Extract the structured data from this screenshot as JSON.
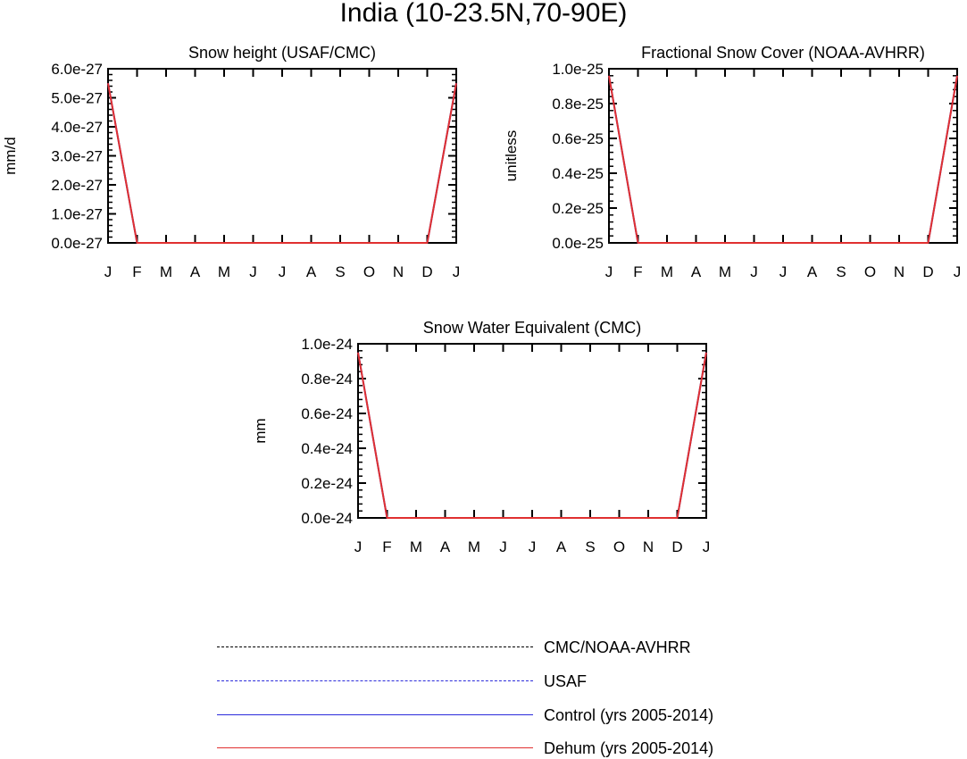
{
  "title": "India (10-23.5N,70-90E)",
  "chart_data": [
    {
      "type": "line",
      "title": "Snow height (USAF/CMC)",
      "ylabel": "mm/d",
      "x": [
        "J",
        "F",
        "M",
        "A",
        "M",
        "J",
        "J",
        "A",
        "S",
        "O",
        "N",
        "D",
        "J"
      ],
      "ylim": [
        0,
        6e-27
      ],
      "yticks": [
        "0.0e-27",
        "1.0e-27",
        "2.0e-27",
        "3.0e-27",
        "4.0e-27",
        "5.0e-27",
        "6.0e-27"
      ],
      "series": [
        {
          "name": "Control (yrs 2005-2014)",
          "color": "#2b2bdb",
          "values": [
            5.5e-27,
            0,
            0,
            0,
            0,
            0,
            0,
            0,
            0,
            0,
            0,
            0,
            5.5e-27
          ]
        },
        {
          "name": "Dehum (yrs 2005-2014)",
          "color": "#e03030",
          "values": [
            5.5e-27,
            0,
            0,
            0,
            0,
            0,
            0,
            0,
            0,
            0,
            0,
            0,
            5.5e-27
          ]
        }
      ]
    },
    {
      "type": "line",
      "title": "Fractional Snow Cover (NOAA-AVHRR)",
      "ylabel": "unitless",
      "x": [
        "J",
        "F",
        "M",
        "A",
        "M",
        "J",
        "J",
        "A",
        "S",
        "O",
        "N",
        "D",
        "J"
      ],
      "ylim": [
        0,
        1e-25
      ],
      "yticks": [
        "0.0e-25",
        "0.2e-25",
        "0.4e-25",
        "0.6e-25",
        "0.8e-25",
        "1.0e-25"
      ],
      "series": [
        {
          "name": "Control (yrs 2005-2014)",
          "color": "#2b2bdb",
          "values": [
            9.6e-26,
            0,
            0,
            0,
            0,
            0,
            0,
            0,
            0,
            0,
            0,
            0,
            9.6e-26
          ]
        },
        {
          "name": "Dehum (yrs 2005-2014)",
          "color": "#e03030",
          "values": [
            9.6e-26,
            0,
            0,
            0,
            0,
            0,
            0,
            0,
            0,
            0,
            0,
            0,
            9.6e-26
          ]
        }
      ]
    },
    {
      "type": "line",
      "title": "Snow Water Equivalent (CMC)",
      "ylabel": "mm",
      "x": [
        "J",
        "F",
        "M",
        "A",
        "M",
        "J",
        "J",
        "A",
        "S",
        "O",
        "N",
        "D",
        "J"
      ],
      "ylim": [
        0,
        1e-24
      ],
      "yticks": [
        "0.0e-24",
        "0.2e-24",
        "0.4e-24",
        "0.6e-24",
        "0.8e-24",
        "1.0e-24"
      ],
      "series": [
        {
          "name": "Control (yrs 2005-2014)",
          "color": "#2b2bdb",
          "values": [
            9.5e-25,
            0,
            0,
            0,
            0,
            0,
            0,
            0,
            0,
            0,
            0,
            0,
            9.5e-25
          ]
        },
        {
          "name": "Dehum (yrs 2005-2014)",
          "color": "#e03030",
          "values": [
            9.5e-25,
            0,
            0,
            0,
            0,
            0,
            0,
            0,
            0,
            0,
            0,
            0,
            9.5e-25
          ]
        }
      ]
    }
  ],
  "legend": [
    {
      "label": "CMC/NOAA-AVHRR",
      "color": "#000000",
      "style": "dashed"
    },
    {
      "label": "USAF",
      "color": "#2b2bdb",
      "style": "dashed"
    },
    {
      "label": "Control (yrs 2005-2014)",
      "color": "#2b2bdb",
      "style": "solid"
    },
    {
      "label": "Dehum (yrs 2005-2014)",
      "color": "#e03030",
      "style": "solid"
    }
  ]
}
